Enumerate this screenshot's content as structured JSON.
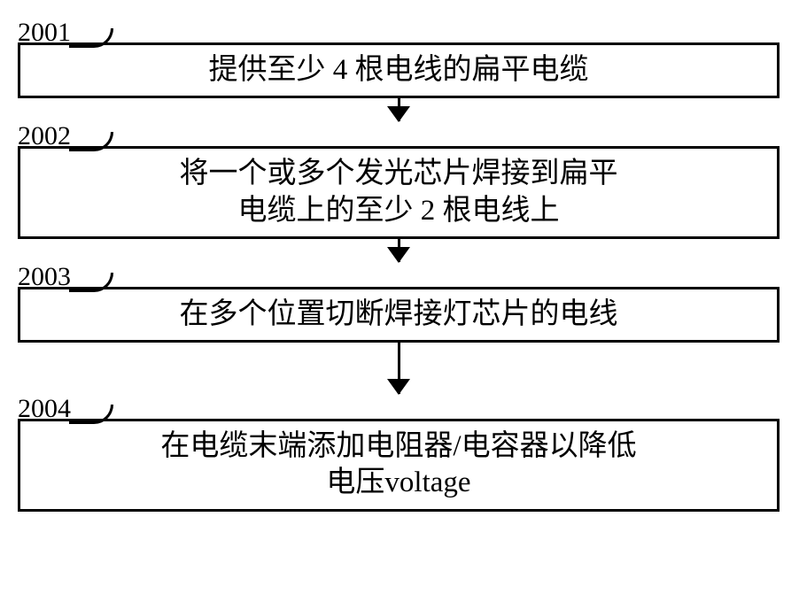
{
  "flowchart": {
    "type": "flowchart",
    "direction": "vertical",
    "border_color": "#000000",
    "border_width": 3,
    "background_color": "#ffffff",
    "font_family": "SimSun",
    "label_fontsize": 30,
    "box_fontsize": 33,
    "arrow_head_width": 26,
    "arrow_head_height": 18,
    "steps": [
      {
        "id": "2001",
        "text": "提供至少 4 根电线的扁平电缆",
        "lines": 1,
        "arrow_after_height": 44
      },
      {
        "id": "2002",
        "text": "将一个或多个发光芯片焊接到扁平电缆上的至少 2 根电线上",
        "lines": 2,
        "arrow_after_height": 44
      },
      {
        "id": "2003",
        "text": "在多个位置切断焊接灯芯片的电线",
        "lines": 1,
        "arrow_after_height": 76
      },
      {
        "id": "2004",
        "text": "在电缆末端添加电阻器/电容器以降低电压voltage",
        "lines": 2,
        "arrow_after_height": 0
      }
    ]
  }
}
